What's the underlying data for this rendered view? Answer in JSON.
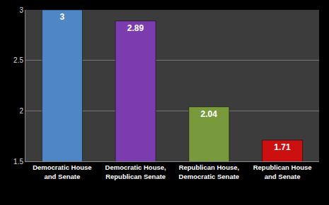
{
  "chart_data": {
    "type": "bar",
    "categories": [
      "Democratic House and Senate",
      "Democratic House, Republican Senate",
      "Republican House, Democratic Senate",
      "Republican House and Senate"
    ],
    "values": [
      3,
      2.89,
      2.04,
      1.71
    ],
    "colors": [
      "#4f86c6",
      "#7a3cae",
      "#789a3c",
      "#cc1010"
    ],
    "ylim": [
      1.5,
      3
    ],
    "yticks": [
      1.5,
      2,
      2.5,
      3
    ],
    "grid": true,
    "data_labels": true
  }
}
